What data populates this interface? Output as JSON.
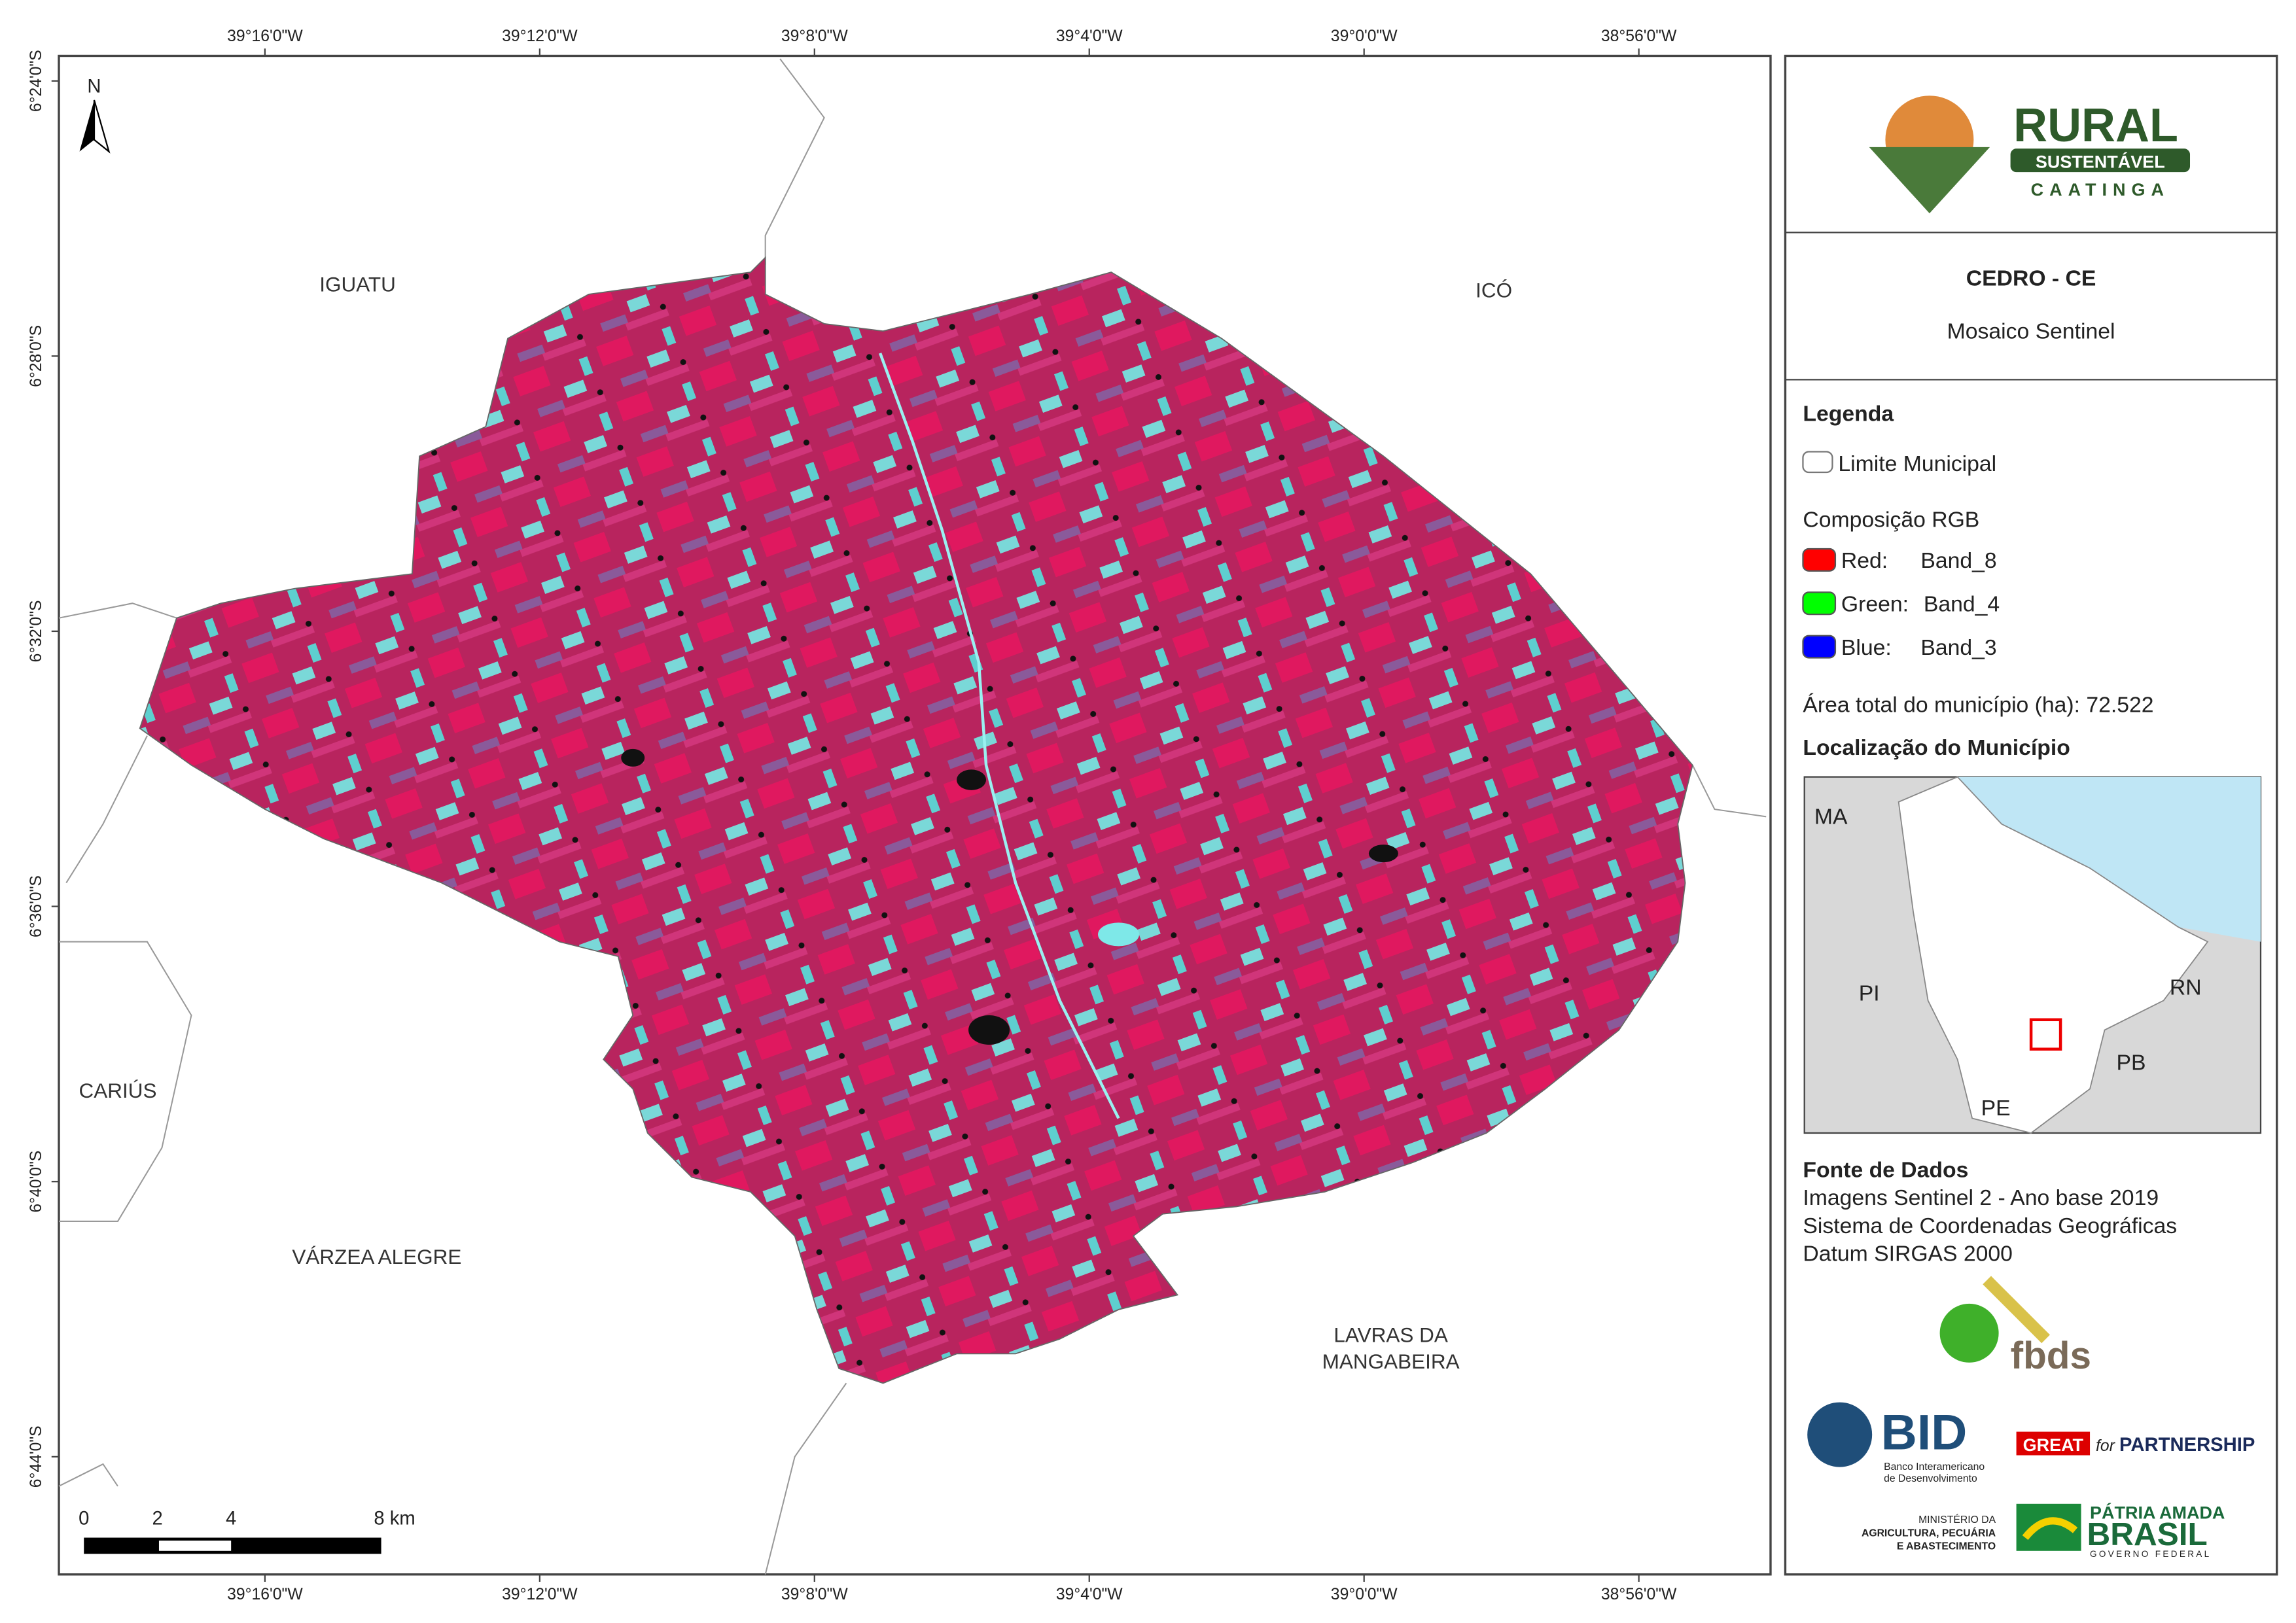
{
  "map": {
    "top_ticks": [
      "39°16'0\"W",
      "39°12'0\"W",
      "39°8'0\"W",
      "39°4'0\"W",
      "39°0'0\"W",
      "38°56'0\"W"
    ],
    "left_ticks": [
      "6°24'0\"S",
      "6°28'0\"S",
      "6°32'0\"S",
      "6°36'0\"S",
      "6°40'0\"S",
      "6°44'0\"S"
    ],
    "north": "N",
    "places": {
      "iguatu": "IGUATU",
      "ico": "ICÓ",
      "carius": "CARIÚS",
      "varzea": "VÁRZEA ALEGRE",
      "lavras1": "LAVRAS DA",
      "lavras2": "MANGABEIRA"
    },
    "scale": [
      "0",
      "2",
      "4",
      "8 km"
    ]
  },
  "panel": {
    "logo": {
      "rural": "RURAL",
      "sust": "SUSTENTÁVEL",
      "caatinga": "CAATINGA"
    },
    "title": "CEDRO - CE",
    "subtitle": "Mosaico Sentinel",
    "legend_title": "Legenda",
    "limite": "Limite Municipal",
    "rgb_title": "Composição RGB",
    "bands": [
      {
        "name": "Red:",
        "band": "Band_8",
        "color": "#ff0000"
      },
      {
        "name": "Green:",
        "band": "Band_4",
        "color": "#00ff00"
      },
      {
        "name": "Blue:",
        "band": "Band_3",
        "color": "#0000ff"
      }
    ],
    "area": "Área total do município (ha): 72.522",
    "loc_title": "Localização do Município",
    "inset": {
      "ma": "MA",
      "pi": "PI",
      "rn": "RN",
      "pb": "PB",
      "pe": "PE"
    },
    "sources_title": "Fonte de Dados",
    "sources": [
      "Imagens Sentinel 2 - Ano base 2019",
      "Sistema de Coordenadas Geográficas",
      "Datum SIRGAS 2000"
    ],
    "logos": {
      "fbds": "fbds",
      "bid": "BID",
      "bid_sub1": "Banco Interamericano",
      "bid_sub2": "de Desenvolvimento",
      "great": "GREAT",
      "for": "for",
      "partnership": "PARTNERSHIP",
      "min1": "MINISTÉRIO DA",
      "min2": "AGRICULTURA, PECUÁRIA",
      "min3": "E ABASTECIMENTO",
      "patria": "PÁTRIA AMADA",
      "brasil": "BRASIL",
      "gov": "GOVERNO FEDERAL"
    }
  }
}
